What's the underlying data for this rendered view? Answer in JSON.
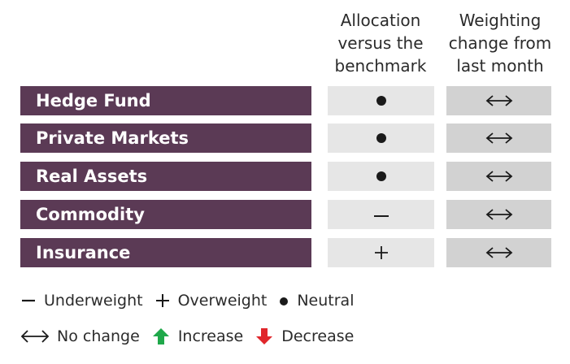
{
  "headers": {
    "allocation": "Allocation\nversus the\nbenchmark",
    "change": "Weighting\nchange from\nlast month"
  },
  "rows": [
    {
      "label": "Hedge Fund",
      "allocation": "neutral",
      "change": "no-change"
    },
    {
      "label": "Private Markets",
      "allocation": "neutral",
      "change": "no-change"
    },
    {
      "label": "Real Assets",
      "allocation": "neutral",
      "change": "no-change"
    },
    {
      "label": "Commodity",
      "allocation": "underweight",
      "change": "no-change"
    },
    {
      "label": "Insurance",
      "allocation": "overweight",
      "change": "no-change"
    }
  ],
  "legend": {
    "underweight": "Underweight",
    "overweight": "Overweight",
    "neutral": "Neutral",
    "no_change": "No change",
    "increase": "Increase",
    "decrease": "Decrease"
  },
  "colors": {
    "label_bg": "#5b3a55",
    "increase": "#1fa84a",
    "decrease": "#e0262b"
  }
}
